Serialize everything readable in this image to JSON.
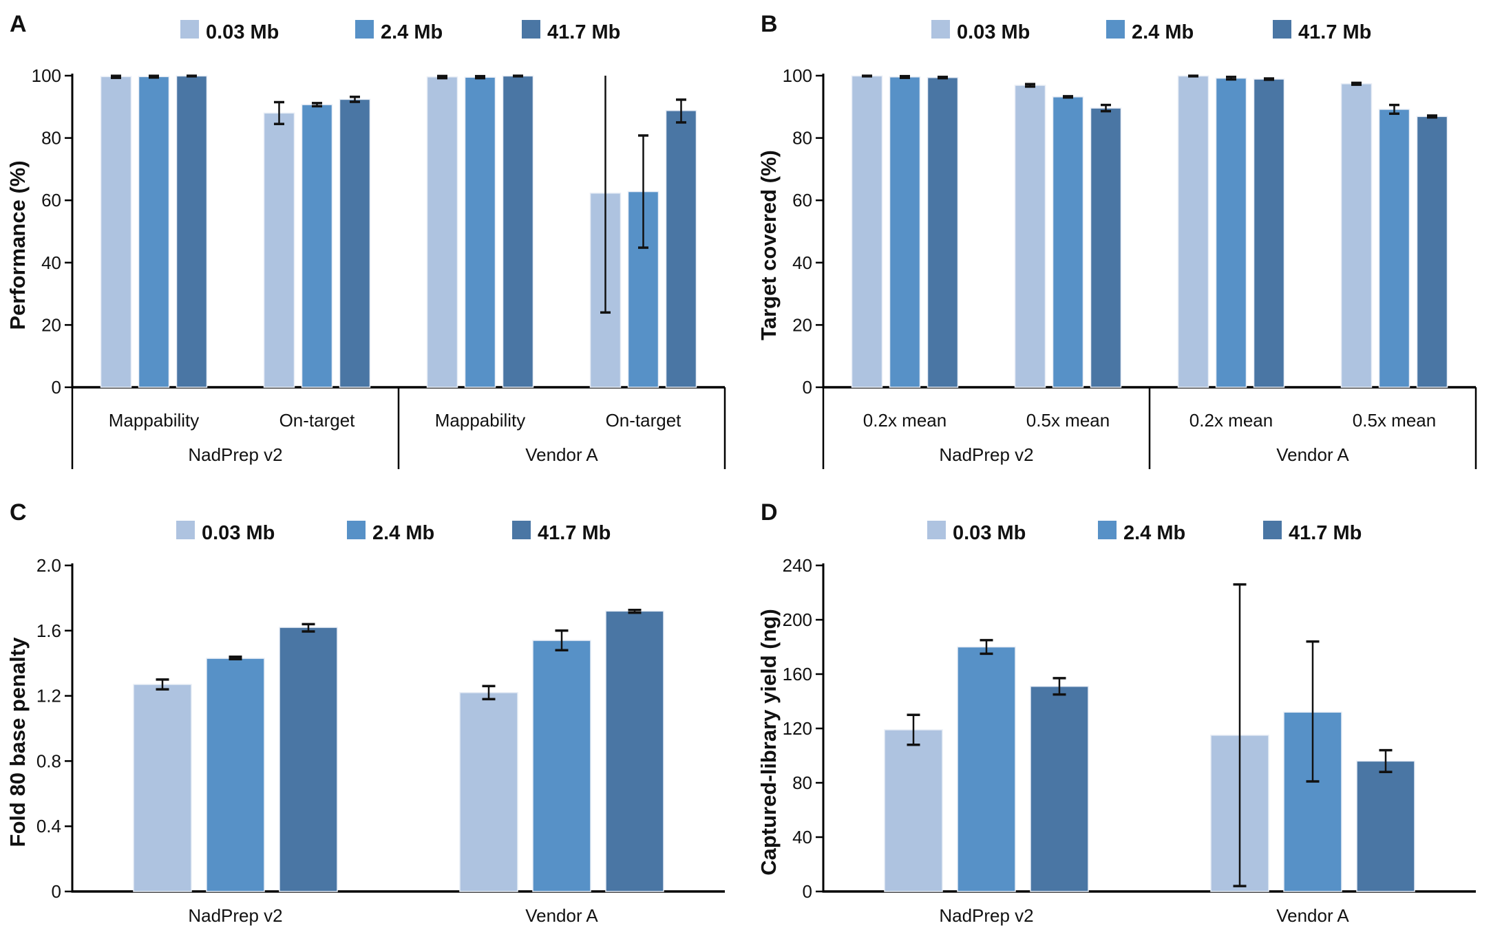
{
  "figure": {
    "legend": {
      "series": [
        {
          "label": "0.03 Mb",
          "color": "#aec3e0"
        },
        {
          "label": "2.4 Mb",
          "color": "#5791c7"
        },
        {
          "label": "41.7 Mb",
          "color": "#4a76a4"
        }
      ]
    },
    "error_bar_color": "#111111",
    "axis_color": "#000000"
  },
  "chart_data": [
    {
      "type": "bar",
      "panel": "A",
      "ylabel": "Performance (%)",
      "ylim": [
        0,
        100
      ],
      "yticks": [
        {
          "v": 0,
          "label": "0"
        },
        {
          "v": 20,
          "label": "20"
        },
        {
          "v": 40,
          "label": "40"
        },
        {
          "v": 60,
          "label": "60"
        },
        {
          "v": 80,
          "label": "80"
        },
        {
          "v": 100,
          "label": "100"
        }
      ],
      "legend_position": "top",
      "grid": false,
      "nested_axis": true,
      "groups": [
        {
          "label": "NadPrep v2",
          "subgroups": [
            {
              "label": "Mappability",
              "bars": [
                {
                  "series": "0.03 Mb",
                  "value": 99.7,
                  "err_lo": 99.3,
                  "err_hi": 99.95
                },
                {
                  "series": "2.4 Mb",
                  "value": 99.7,
                  "err_lo": 99.4,
                  "err_hi": 99.95
                },
                {
                  "series": "41.7 Mb",
                  "value": 99.9,
                  "err_lo": 99.8,
                  "err_hi": 99.97
                }
              ]
            },
            {
              "label": "On-target",
              "bars": [
                {
                  "series": "0.03 Mb",
                  "value": 88.0,
                  "err_lo": 84.5,
                  "err_hi": 91.5
                },
                {
                  "series": "2.4 Mb",
                  "value": 90.7,
                  "err_lo": 90.2,
                  "err_hi": 91.2
                },
                {
                  "series": "41.7 Mb",
                  "value": 92.4,
                  "err_lo": 91.6,
                  "err_hi": 93.2
                }
              ]
            }
          ]
        },
        {
          "label": "Vendor A",
          "subgroups": [
            {
              "label": "Mappability",
              "bars": [
                {
                  "series": "0.03 Mb",
                  "value": 99.6,
                  "err_lo": 99.2,
                  "err_hi": 99.9
                },
                {
                  "series": "2.4 Mb",
                  "value": 99.5,
                  "err_lo": 99.2,
                  "err_hi": 99.85
                },
                {
                  "series": "41.7 Mb",
                  "value": 99.9,
                  "err_lo": 99.8,
                  "err_hi": 99.97
                }
              ]
            },
            {
              "label": "On-target",
              "bars": [
                {
                  "series": "0.03 Mb",
                  "value": 62.3,
                  "err_lo": 24.0,
                  "err_hi": 100.4
                },
                {
                  "series": "2.4 Mb",
                  "value": 62.8,
                  "err_lo": 44.8,
                  "err_hi": 80.8
                },
                {
                  "series": "41.7 Mb",
                  "value": 88.8,
                  "err_lo": 85.0,
                  "err_hi": 92.3
                }
              ]
            }
          ]
        }
      ]
    },
    {
      "type": "bar",
      "panel": "B",
      "ylabel": "Target covered (%)",
      "ylim": [
        0,
        100
      ],
      "yticks": [
        {
          "v": 0,
          "label": "0"
        },
        {
          "v": 20,
          "label": "20"
        },
        {
          "v": 40,
          "label": "40"
        },
        {
          "v": 60,
          "label": "60"
        },
        {
          "v": 80,
          "label": "80"
        },
        {
          "v": 100,
          "label": "100"
        }
      ],
      "legend_position": "top",
      "grid": false,
      "nested_axis": true,
      "groups": [
        {
          "label": "NadPrep v2",
          "subgroups": [
            {
              "label": "0.2x mean",
              "bars": [
                {
                  "series": "0.03 Mb",
                  "value": 99.9,
                  "err_lo": 99.8,
                  "err_hi": 99.97
                },
                {
                  "series": "2.4 Mb",
                  "value": 99.6,
                  "err_lo": 99.3,
                  "err_hi": 99.85
                },
                {
                  "series": "41.7 Mb",
                  "value": 99.4,
                  "err_lo": 99.2,
                  "err_hi": 99.6
                }
              ]
            },
            {
              "label": "0.5x mean",
              "bars": [
                {
                  "series": "0.03 Mb",
                  "value": 96.9,
                  "err_lo": 96.5,
                  "err_hi": 97.3
                },
                {
                  "series": "2.4 Mb",
                  "value": 93.2,
                  "err_lo": 93.0,
                  "err_hi": 93.4
                },
                {
                  "series": "41.7 Mb",
                  "value": 89.6,
                  "err_lo": 88.6,
                  "err_hi": 90.6
                }
              ]
            }
          ]
        },
        {
          "label": "Vendor A",
          "subgroups": [
            {
              "label": "0.2x mean",
              "bars": [
                {
                  "series": "0.03 Mb",
                  "value": 99.9,
                  "err_lo": 99.8,
                  "err_hi": 99.97
                },
                {
                  "series": "2.4 Mb",
                  "value": 99.2,
                  "err_lo": 98.8,
                  "err_hi": 99.6
                },
                {
                  "series": "41.7 Mb",
                  "value": 98.9,
                  "err_lo": 98.7,
                  "err_hi": 99.1
                }
              ]
            },
            {
              "label": "0.5x mean",
              "bars": [
                {
                  "series": "0.03 Mb",
                  "value": 97.4,
                  "err_lo": 97.1,
                  "err_hi": 97.7
                },
                {
                  "series": "2.4 Mb",
                  "value": 89.2,
                  "err_lo": 87.8,
                  "err_hi": 90.6
                },
                {
                  "series": "41.7 Mb",
                  "value": 86.9,
                  "err_lo": 86.6,
                  "err_hi": 87.2
                }
              ]
            }
          ]
        }
      ]
    },
    {
      "type": "bar",
      "panel": "C",
      "ylabel": "Fold 80 base penalty",
      "ylim": [
        0,
        2.0
      ],
      "yticks": [
        {
          "v": 0,
          "label": "0"
        },
        {
          "v": 0.4,
          "label": "0.4"
        },
        {
          "v": 0.8,
          "label": "0.8"
        },
        {
          "v": 1.2,
          "label": "1.2"
        },
        {
          "v": 1.6,
          "label": "1.6"
        },
        {
          "v": 2.0,
          "label": "2.0"
        }
      ],
      "legend_position": "top",
      "grid": false,
      "nested_axis": false,
      "groups": [
        {
          "label": "NadPrep v2",
          "bars": [
            {
              "series": "0.03 Mb",
              "value": 1.27,
              "err_lo": 1.24,
              "err_hi": 1.3
            },
            {
              "series": "2.4 Mb",
              "value": 1.43,
              "err_lo": 1.425,
              "err_hi": 1.44
            },
            {
              "series": "41.7 Mb",
              "value": 1.62,
              "err_lo": 1.595,
              "err_hi": 1.64
            }
          ]
        },
        {
          "label": "Vendor A",
          "bars": [
            {
              "series": "0.03 Mb",
              "value": 1.22,
              "err_lo": 1.18,
              "err_hi": 1.26
            },
            {
              "series": "2.4 Mb",
              "value": 1.54,
              "err_lo": 1.48,
              "err_hi": 1.6
            },
            {
              "series": "41.7 Mb",
              "value": 1.72,
              "err_lo": 1.71,
              "err_hi": 1.727
            }
          ]
        }
      ]
    },
    {
      "type": "bar",
      "panel": "D",
      "ylabel": "Captured-library yield (ng)",
      "ylim": [
        0,
        240
      ],
      "yticks": [
        {
          "v": 0,
          "label": "0"
        },
        {
          "v": 40,
          "label": "40"
        },
        {
          "v": 80,
          "label": "80"
        },
        {
          "v": 120,
          "label": "120"
        },
        {
          "v": 160,
          "label": "160"
        },
        {
          "v": 200,
          "label": "200"
        },
        {
          "v": 240,
          "label": "240"
        }
      ],
      "legend_position": "top",
      "grid": false,
      "nested_axis": false,
      "groups": [
        {
          "label": "NadPrep v2",
          "bars": [
            {
              "series": "0.03 Mb",
              "value": 119,
              "err_lo": 108,
              "err_hi": 130
            },
            {
              "series": "2.4 Mb",
              "value": 180,
              "err_lo": 175,
              "err_hi": 185
            },
            {
              "series": "41.7 Mb",
              "value": 151,
              "err_lo": 145,
              "err_hi": 157
            }
          ]
        },
        {
          "label": "Vendor A",
          "bars": [
            {
              "series": "0.03 Mb",
              "value": 115,
              "err_lo": 4,
              "err_hi": 226
            },
            {
              "series": "2.4 Mb",
              "value": 132,
              "err_lo": 81,
              "err_hi": 184
            },
            {
              "series": "41.7 Mb",
              "value": 96,
              "err_lo": 88,
              "err_hi": 104
            }
          ]
        }
      ]
    }
  ]
}
